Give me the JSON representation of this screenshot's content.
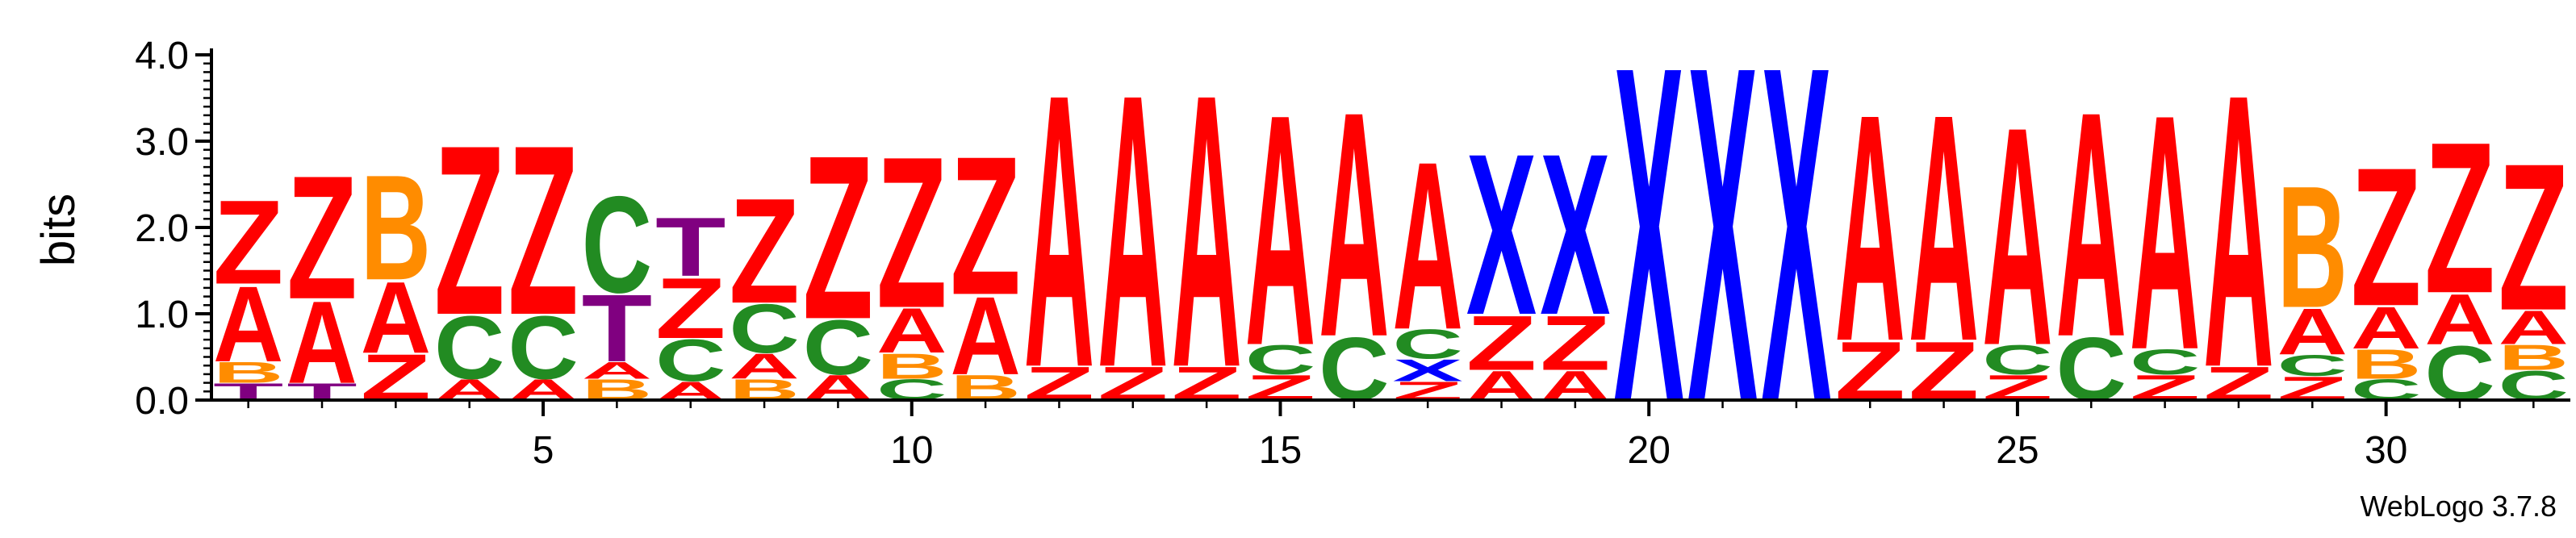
{
  "chart_data": {
    "type": "sequence-logo",
    "ylabel": "bits",
    "ylim": [
      0,
      4.0
    ],
    "yticks": [
      "0.0",
      "1.0",
      "2.0",
      "3.0",
      "4.0"
    ],
    "xlim": [
      0.5,
      32.5
    ],
    "xticks": [
      5,
      10,
      15,
      20,
      25,
      30
    ],
    "credit": "WebLogo 3.7.8",
    "colors": {
      "A": "#ff0000",
      "Z": "#ff0000",
      "B": "#ff8c00",
      "C": "#228b22",
      "T": "#800080",
      "X": "#0000ff"
    },
    "positions": [
      {
        "pos": 1,
        "stack": [
          [
            "T",
            0.2
          ],
          [
            "B",
            0.25
          ],
          [
            "A",
            0.9
          ],
          [
            "Z",
            1.0
          ]
        ]
      },
      {
        "pos": 2,
        "stack": [
          [
            "T",
            0.2
          ],
          [
            "A",
            0.98
          ],
          [
            "Z",
            1.47
          ]
        ]
      },
      {
        "pos": 3,
        "stack": [
          [
            "Z",
            0.55
          ],
          [
            "A",
            0.85
          ],
          [
            "B",
            1.25
          ]
        ]
      },
      {
        "pos": 4,
        "stack": [
          [
            "A",
            0.25
          ],
          [
            "C",
            0.75
          ],
          [
            "Z",
            2.02
          ]
        ]
      },
      {
        "pos": 5,
        "stack": [
          [
            "A",
            0.25
          ],
          [
            "C",
            0.75
          ],
          [
            "Z",
            2.02
          ]
        ]
      },
      {
        "pos": 6,
        "stack": [
          [
            "B",
            0.25
          ],
          [
            "A",
            0.2
          ],
          [
            "T",
            0.8
          ],
          [
            "C",
            1.15
          ]
        ]
      },
      {
        "pos": 7,
        "stack": [
          [
            "A",
            0.22
          ],
          [
            "C",
            0.5
          ],
          [
            "Z",
            0.72
          ],
          [
            "T",
            0.7
          ]
        ]
      },
      {
        "pos": 8,
        "stack": [
          [
            "B",
            0.25
          ],
          [
            "A",
            0.3
          ],
          [
            "C",
            0.58
          ],
          [
            "Z",
            1.25
          ]
        ]
      },
      {
        "pos": 9,
        "stack": [
          [
            "A",
            0.3
          ],
          [
            "C",
            0.65
          ],
          [
            "Z",
            1.95
          ]
        ]
      },
      {
        "pos": 10,
        "stack": [
          [
            "C",
            0.25
          ],
          [
            "B",
            0.3
          ],
          [
            "A",
            0.53
          ],
          [
            "Z",
            1.8
          ]
        ]
      },
      {
        "pos": 11,
        "stack": [
          [
            "B",
            0.3
          ],
          [
            "A",
            0.93
          ],
          [
            "Z",
            1.65
          ]
        ]
      },
      {
        "pos": 12,
        "stack": [
          [
            "Z",
            0.4
          ],
          [
            "A",
            3.25
          ]
        ]
      },
      {
        "pos": 13,
        "stack": [
          [
            "Z",
            0.4
          ],
          [
            "A",
            3.25
          ]
        ]
      },
      {
        "pos": 14,
        "stack": [
          [
            "Z",
            0.4
          ],
          [
            "A",
            3.25
          ]
        ]
      },
      {
        "pos": 15,
        "stack": [
          [
            "Z",
            0.3
          ],
          [
            "C",
            0.35
          ],
          [
            "A",
            2.75
          ]
        ]
      },
      {
        "pos": 16,
        "stack": [
          [
            "C",
            0.75
          ],
          [
            "A",
            2.68
          ]
        ]
      },
      {
        "pos": 17,
        "stack": [
          [
            "Z",
            0.22
          ],
          [
            "X",
            0.26
          ],
          [
            "C",
            0.35
          ],
          [
            "A",
            2.0
          ]
        ]
      },
      {
        "pos": 18,
        "stack": [
          [
            "A",
            0.35
          ],
          [
            "Z",
            0.65
          ],
          [
            "X",
            1.92
          ]
        ]
      },
      {
        "pos": 19,
        "stack": [
          [
            "A",
            0.35
          ],
          [
            "Z",
            0.65
          ],
          [
            "X",
            1.92
          ]
        ]
      },
      {
        "pos": 20,
        "stack": [
          [
            "X",
            4.0
          ]
        ]
      },
      {
        "pos": 21,
        "stack": [
          [
            "X",
            4.0
          ]
        ]
      },
      {
        "pos": 22,
        "stack": [
          [
            "X",
            4.0
          ]
        ]
      },
      {
        "pos": 23,
        "stack": [
          [
            "Z",
            0.7
          ],
          [
            "A",
            2.7
          ]
        ]
      },
      {
        "pos": 24,
        "stack": [
          [
            "Z",
            0.7
          ],
          [
            "A",
            2.7
          ]
        ]
      },
      {
        "pos": 25,
        "stack": [
          [
            "Z",
            0.3
          ],
          [
            "C",
            0.35
          ],
          [
            "A",
            2.6
          ]
        ]
      },
      {
        "pos": 26,
        "stack": [
          [
            "C",
            0.75
          ],
          [
            "A",
            2.68
          ]
        ]
      },
      {
        "pos": 27,
        "stack": [
          [
            "Z",
            0.3
          ],
          [
            "C",
            0.3
          ],
          [
            "A",
            2.8
          ]
        ]
      },
      {
        "pos": 28,
        "stack": [
          [
            "Z",
            0.4
          ],
          [
            "A",
            3.25
          ]
        ]
      },
      {
        "pos": 29,
        "stack": [
          [
            "Z",
            0.28
          ],
          [
            "C",
            0.25
          ],
          [
            "A",
            0.55
          ],
          [
            "B",
            1.45
          ]
        ]
      },
      {
        "pos": 30,
        "stack": [
          [
            "C",
            0.25
          ],
          [
            "B",
            0.35
          ],
          [
            "A",
            0.5
          ],
          [
            "Z",
            1.65
          ]
        ]
      },
      {
        "pos": 31,
        "stack": [
          [
            "C",
            0.65
          ],
          [
            "A",
            0.6
          ],
          [
            "Z",
            1.8
          ]
        ]
      },
      {
        "pos": 32,
        "stack": [
          [
            "C",
            0.35
          ],
          [
            "B",
            0.3
          ],
          [
            "A",
            0.4
          ],
          [
            "Z",
            1.75
          ]
        ]
      }
    ]
  }
}
